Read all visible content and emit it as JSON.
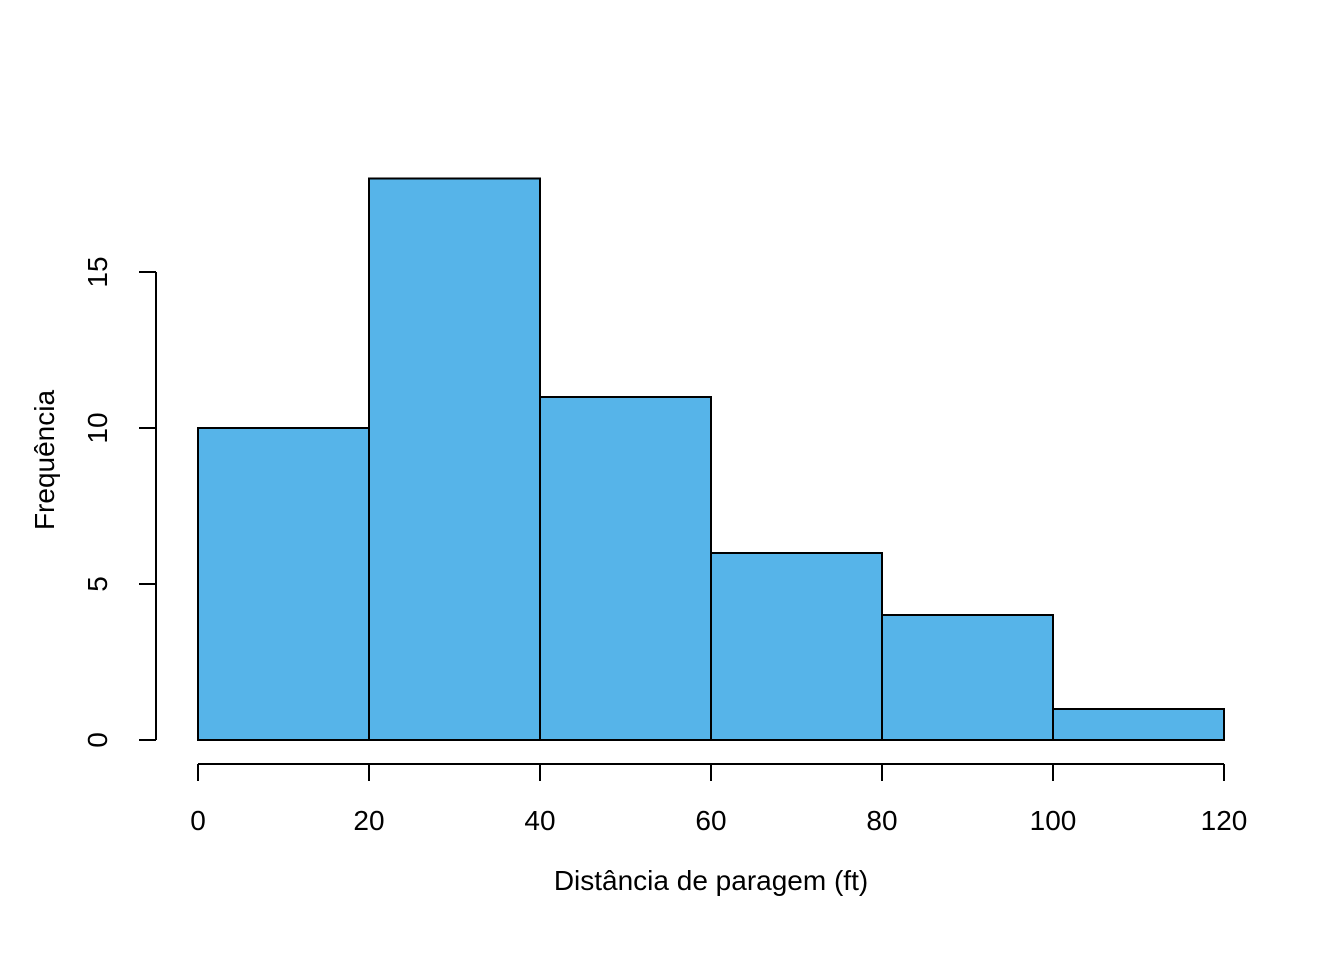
{
  "chart_data": {
    "type": "bar",
    "subtype": "histogram",
    "xlabel": "Distância de paragem (ft)",
    "ylabel": "Frequência",
    "bin_edges": [
      0,
      20,
      40,
      60,
      80,
      100,
      120
    ],
    "counts": [
      10,
      18,
      11,
      6,
      4,
      1
    ],
    "x_ticks": [
      0,
      20,
      40,
      60,
      80,
      100,
      120
    ],
    "y_ticks": [
      0,
      5,
      10,
      15
    ],
    "xlim": [
      0,
      120
    ],
    "ylim": [
      0,
      18
    ],
    "grid": false,
    "legend": false,
    "colors": {
      "bar_fill": "#56B4E9",
      "bar_border": "#000000",
      "axis": "#000000",
      "text": "#000000",
      "background": "#FFFFFF"
    }
  }
}
